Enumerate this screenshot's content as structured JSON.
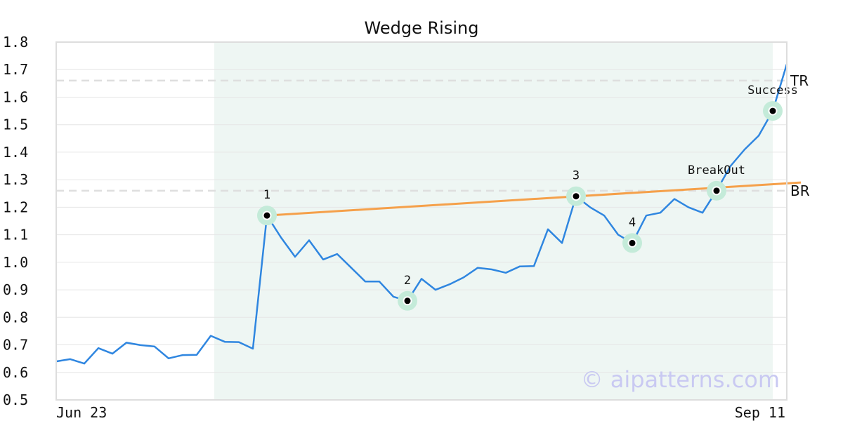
{
  "chart_data": {
    "type": "line",
    "title": "Wedge Rising",
    "xlabel": "",
    "ylabel": "",
    "ylim": [
      0.5,
      1.8
    ],
    "yticks": [
      "0.5",
      "0.6",
      "0.7",
      "0.8",
      "0.9",
      "1.0",
      "1.1",
      "1.2",
      "1.3",
      "1.4",
      "1.5",
      "1.6",
      "1.7",
      "1.8"
    ],
    "xtick_labels": [
      "Jun 23",
      "Sep 11"
    ],
    "grid": "horizontal",
    "pattern_region": {
      "start_index": 13,
      "end_index": 51
    },
    "series": [
      {
        "color": "#2f86e0",
        "values": [
          0.64,
          0.648,
          0.632,
          0.688,
          0.668,
          0.708,
          0.699,
          0.694,
          0.651,
          0.663,
          0.664,
          0.733,
          0.711,
          0.71,
          0.686,
          1.17,
          1.09,
          1.02,
          1.08,
          1.01,
          1.03,
          0.98,
          0.93,
          0.93,
          0.875,
          0.86,
          0.94,
          0.9,
          0.92,
          0.945,
          0.98,
          0.974,
          0.962,
          0.985,
          0.986,
          1.12,
          1.07,
          1.24,
          1.2,
          1.17,
          1.1,
          1.07,
          1.17,
          1.18,
          1.23,
          1.2,
          1.18,
          1.26,
          1.35,
          1.41,
          1.46,
          1.55,
          1.72
        ]
      }
    ],
    "trendline": {
      "color": "#f5a04a",
      "start": {
        "index": 15,
        "value": 1.17
      },
      "end": {
        "index": 53,
        "value": 1.29
      }
    },
    "levels": [
      {
        "label": "TR",
        "value": 1.66
      },
      {
        "label": "BR",
        "value": 1.26
      }
    ],
    "annotations": [
      {
        "label": "1",
        "index": 15,
        "value": 1.17
      },
      {
        "label": "2",
        "index": 25,
        "value": 0.86
      },
      {
        "label": "3",
        "index": 37,
        "value": 1.24
      },
      {
        "label": "4",
        "index": 41,
        "value": 1.07
      },
      {
        "label": "BreakOut",
        "index": 47,
        "value": 1.26
      },
      {
        "label": "Success",
        "index": 51,
        "value": 1.55
      }
    ],
    "watermark": "© aipatterns.com"
  }
}
